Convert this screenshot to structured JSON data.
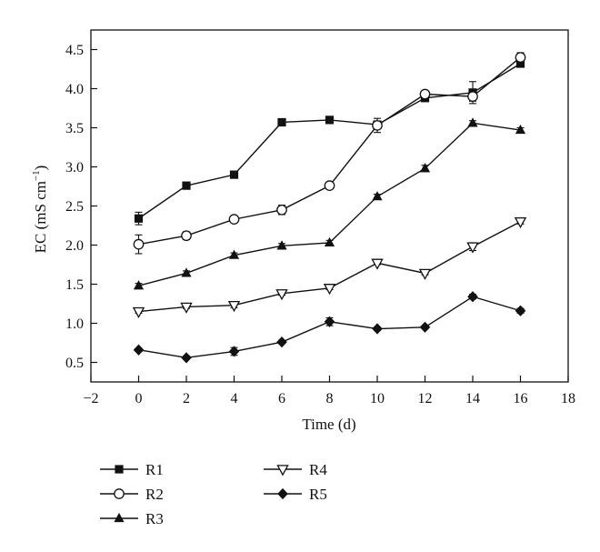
{
  "chart_data": {
    "type": "line",
    "title": "",
    "xlabel": "Time (d)",
    "ylabel": {
      "main": "EC (mS cm",
      "sup": "−1",
      "close": ")"
    },
    "xlim": [
      -2,
      18
    ],
    "ylim": [
      0.25,
      4.75
    ],
    "xticks": [
      -2,
      0,
      2,
      4,
      6,
      8,
      10,
      12,
      14,
      16,
      18
    ],
    "xtick_labels": [
      "−2",
      "0",
      "2",
      "4",
      "6",
      "8",
      "10",
      "12",
      "14",
      "16",
      "18"
    ],
    "yticks": [
      0.5,
      1.0,
      1.5,
      2.0,
      2.5,
      3.0,
      3.5,
      4.0,
      4.5
    ],
    "ytick_labels": [
      "0.5",
      "1.0",
      "1.5",
      "2.0",
      "2.5",
      "3.0",
      "3.5",
      "4.0",
      "4.5"
    ],
    "grid": false,
    "legend_position": "below plot, two columns",
    "x": [
      0,
      2,
      4,
      6,
      8,
      10,
      12,
      14,
      16
    ],
    "series": [
      {
        "name": "R1",
        "marker": "square-filled",
        "values": [
          2.34,
          2.76,
          2.9,
          3.57,
          3.6,
          3.54,
          3.88,
          3.95,
          4.32
        ],
        "errors": [
          0.08,
          0.02,
          0.02,
          0.02,
          0.02,
          0.02,
          0.03,
          0.14,
          0.03
        ]
      },
      {
        "name": "R2",
        "marker": "circle-open",
        "values": [
          2.01,
          2.12,
          2.33,
          2.45,
          2.76,
          3.53,
          3.93,
          3.9,
          4.4
        ],
        "errors": [
          0.12,
          0.05,
          0.04,
          0.06,
          0.03,
          0.09,
          0.03,
          0.06,
          0.06
        ]
      },
      {
        "name": "R3",
        "marker": "triangle-up-filled",
        "values": [
          1.48,
          1.64,
          1.87,
          1.99,
          2.03,
          2.62,
          2.98,
          3.56,
          3.47
        ],
        "errors": [
          0.03,
          0.03,
          0.03,
          0.03,
          0.03,
          0.03,
          0.04,
          0.03,
          0.03
        ]
      },
      {
        "name": "R4",
        "marker": "triangle-down-open",
        "values": [
          1.15,
          1.21,
          1.23,
          1.38,
          1.45,
          1.77,
          1.64,
          1.98,
          2.3
        ],
        "errors": [
          0.02,
          0.02,
          0.03,
          0.02,
          0.02,
          0.02,
          0.02,
          0.05,
          0.03
        ]
      },
      {
        "name": "R5",
        "marker": "diamond-filled",
        "values": [
          0.66,
          0.56,
          0.64,
          0.76,
          1.02,
          0.93,
          0.95,
          1.34,
          1.16
        ],
        "errors": [
          0.02,
          0.02,
          0.05,
          0.02,
          0.05,
          0.02,
          0.02,
          0.03,
          0.03
        ]
      }
    ],
    "colors": {
      "ink": "#111111",
      "background": "#ffffff"
    }
  }
}
